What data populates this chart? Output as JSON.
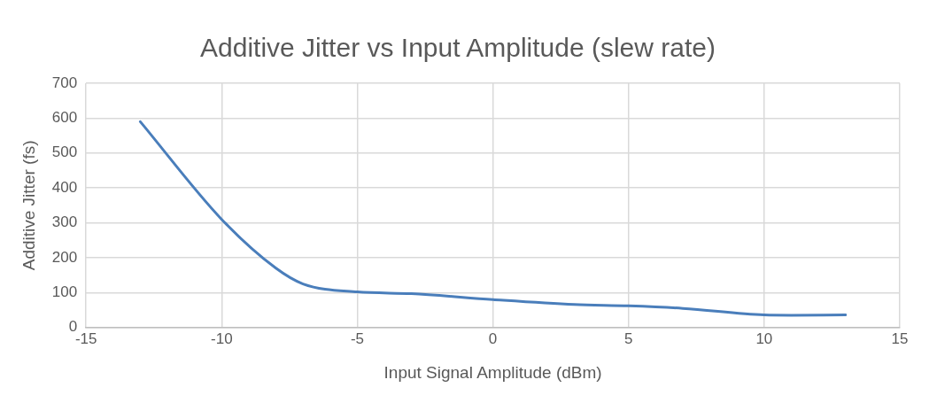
{
  "chart_data": {
    "type": "line",
    "title": "Additive Jitter vs Input Amplitude (slew rate)",
    "xlabel": "Input Signal Amplitude (dBm)",
    "ylabel": "Additive Jitter (fs)",
    "x": [
      -13,
      -10,
      -8,
      -7,
      -5,
      -3,
      0,
      3,
      5,
      7,
      10,
      11,
      13
    ],
    "series": [
      {
        "color": "#4a7ebb",
        "values": [
          590,
          310,
          170,
          125,
          102,
          97,
          80,
          66,
          62,
          55,
          36,
          35,
          36
        ]
      }
    ],
    "xlim": [
      -15,
      15
    ],
    "xticks": [
      -15,
      -10,
      -5,
      0,
      5,
      10,
      15
    ],
    "ylim": [
      0,
      700
    ],
    "yticks": [
      0,
      100,
      200,
      300,
      400,
      500,
      600,
      700
    ],
    "grid": true,
    "legend": false,
    "marker": "none",
    "line_style": "solid"
  }
}
